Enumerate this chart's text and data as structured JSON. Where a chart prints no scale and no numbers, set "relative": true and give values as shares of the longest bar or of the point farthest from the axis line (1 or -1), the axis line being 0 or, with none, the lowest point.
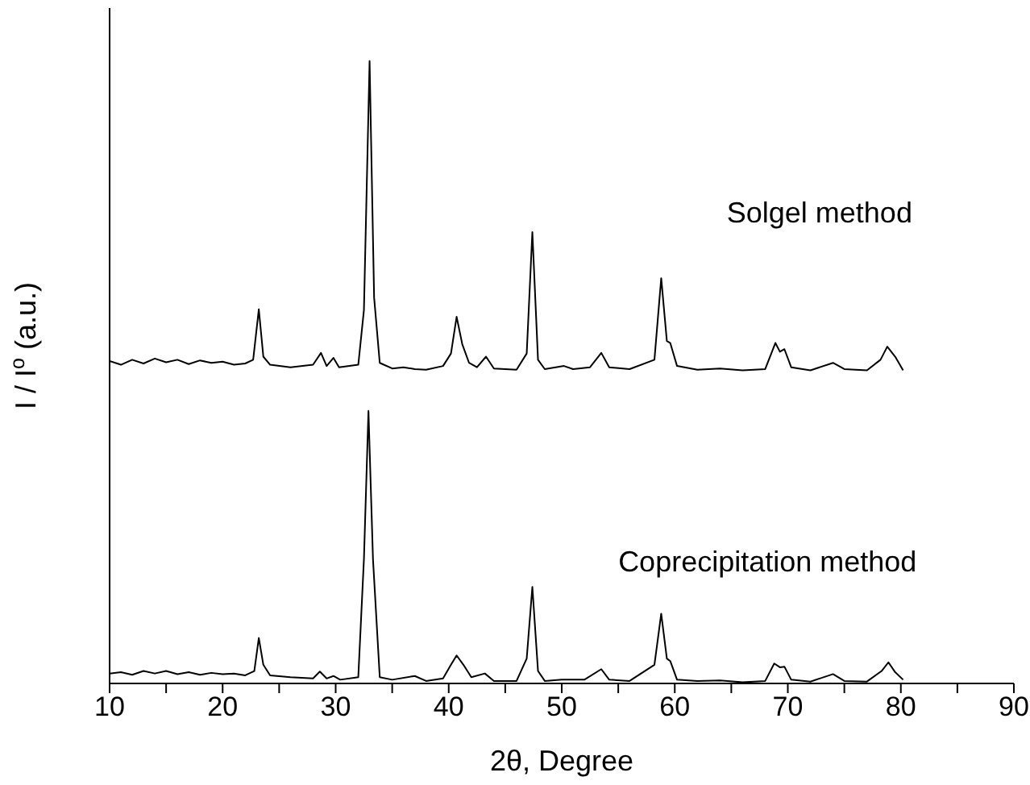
{
  "chart_data": {
    "type": "line",
    "relative": true,
    "xlabel": "2θ, Degree",
    "ylabel": "I / I$^{o}$ (a.u.)",
    "xlim": [
      10,
      90
    ],
    "xticks": [
      10,
      {
        "value": 15,
        "label": null
      },
      20,
      {
        "value": 25,
        "label": null
      },
      30,
      {
        "value": 35,
        "label": null
      },
      40,
      {
        "value": 45,
        "label": null
      },
      50,
      {
        "value": 55,
        "label": null
      },
      60,
      {
        "value": 65,
        "label": null
      },
      70,
      {
        "value": 75,
        "label": null
      },
      80,
      {
        "value": 85,
        "label": null
      },
      90
    ],
    "grid": false,
    "legend": false,
    "marker": "none",
    "line_style": "solid",
    "series": [
      {
        "name": "Solgel method",
        "color": "#000000",
        "x": [
          10,
          11,
          12,
          13,
          14,
          15,
          16,
          17,
          18,
          19,
          20,
          21,
          22,
          22.7,
          23.2,
          23.6,
          24.2,
          26,
          28,
          28.7,
          29.2,
          29.8,
          30.3,
          32,
          32.5,
          33.0,
          33.4,
          33.9,
          35,
          36,
          37,
          38,
          39.5,
          40.2,
          40.7,
          41.2,
          41.8,
          42.5,
          43.3,
          44,
          46,
          46.9,
          47.4,
          47.9,
          48.5,
          50.2,
          51,
          52.5,
          53.5,
          54.2,
          56,
          58.2,
          58.8,
          59.3,
          59.6,
          60.2,
          62,
          64,
          66,
          68,
          68.9,
          69.3,
          69.7,
          70.3,
          72,
          74,
          75,
          77,
          78.2,
          78.8,
          79.5,
          80.2
        ],
        "values": [
          0.518,
          0.512,
          0.52,
          0.514,
          0.522,
          0.516,
          0.52,
          0.513,
          0.519,
          0.515,
          0.517,
          0.512,
          0.514,
          0.52,
          0.601,
          0.525,
          0.512,
          0.508,
          0.512,
          0.531,
          0.51,
          0.523,
          0.508,
          0.512,
          0.6,
          1.0,
          0.62,
          0.515,
          0.506,
          0.508,
          0.505,
          0.504,
          0.51,
          0.53,
          0.589,
          0.545,
          0.515,
          0.508,
          0.525,
          0.506,
          0.504,
          0.53,
          0.725,
          0.52,
          0.505,
          0.51,
          0.505,
          0.508,
          0.531,
          0.508,
          0.505,
          0.52,
          0.651,
          0.55,
          0.547,
          0.51,
          0.504,
          0.506,
          0.503,
          0.505,
          0.547,
          0.533,
          0.537,
          0.508,
          0.503,
          0.515,
          0.505,
          0.503,
          0.52,
          0.541,
          0.525,
          0.503
        ]
      },
      {
        "name": "Coprecipitation method",
        "color": "#000000",
        "x": [
          10,
          11,
          12,
          13,
          14,
          15,
          16,
          17,
          18,
          19,
          20,
          21,
          22,
          22.8,
          23.2,
          23.6,
          24.2,
          26,
          28,
          28.6,
          29.2,
          29.8,
          30.4,
          32,
          32.5,
          32.9,
          33.3,
          33.9,
          35,
          37,
          38,
          39.5,
          40.2,
          40.7,
          41.3,
          42,
          43.2,
          44,
          46,
          46.9,
          47.4,
          47.9,
          48.5,
          50,
          52,
          53.5,
          54.2,
          56,
          58.2,
          58.8,
          59.3,
          59.6,
          60.2,
          62,
          64,
          66,
          68,
          68.8,
          69.3,
          69.7,
          70.3,
          72,
          74,
          75,
          77,
          78.3,
          78.9,
          79.5,
          80.2
        ],
        "values": [
          0.016,
          0.018,
          0.014,
          0.02,
          0.016,
          0.02,
          0.015,
          0.018,
          0.014,
          0.017,
          0.015,
          0.016,
          0.013,
          0.02,
          0.073,
          0.03,
          0.013,
          0.01,
          0.008,
          0.019,
          0.008,
          0.012,
          0.006,
          0.01,
          0.2,
          0.438,
          0.2,
          0.01,
          0.006,
          0.012,
          0.004,
          0.008,
          0.03,
          0.045,
          0.03,
          0.01,
          0.016,
          0.004,
          0.004,
          0.04,
          0.155,
          0.02,
          0.004,
          0.006,
          0.006,
          0.023,
          0.006,
          0.004,
          0.03,
          0.112,
          0.04,
          0.036,
          0.006,
          0.004,
          0.005,
          0.002,
          0.004,
          0.032,
          0.026,
          0.027,
          0.006,
          0.003,
          0.015,
          0.004,
          0.003,
          0.02,
          0.034,
          0.018,
          0.006
        ]
      }
    ]
  }
}
